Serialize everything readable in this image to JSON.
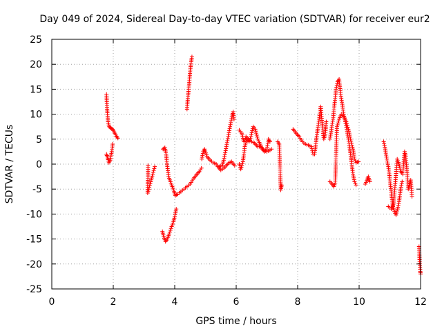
{
  "chart_data": {
    "type": "scatter",
    "title": "Day 049 of 2024, Sidereal Day-to-day VTEC variation (SDTVAR) for receiver eur2",
    "xlabel": "GPS time / hours",
    "ylabel": "SDTVAR / TECUs",
    "xlim": [
      0,
      12
    ],
    "ylim": [
      -25,
      25
    ],
    "xticks": [
      "0",
      "2",
      "4",
      "6",
      "8",
      "10",
      "12"
    ],
    "yticks": [
      "25",
      "20",
      "15",
      "10",
      "5",
      "0",
      "-5",
      "-10",
      "-15",
      "-20",
      "-25"
    ],
    "grid": true,
    "marker": "+",
    "series_color": "#ff0000",
    "segments": [
      [
        [
          1.78,
          14
        ],
        [
          1.8,
          11
        ],
        [
          1.83,
          8.5
        ],
        [
          1.87,
          7.5
        ],
        [
          1.92,
          7.2
        ],
        [
          1.98,
          7
        ],
        [
          2.05,
          6.2
        ],
        [
          2.1,
          5.6
        ],
        [
          2.15,
          5.2
        ]
      ],
      [
        [
          1.78,
          2
        ],
        [
          1.82,
          1.2
        ],
        [
          1.86,
          0.3
        ],
        [
          1.9,
          0.8
        ],
        [
          1.95,
          2.5
        ],
        [
          1.98,
          4
        ]
      ],
      [
        [
          3.13,
          -0.3
        ],
        [
          3.13,
          -2.2
        ],
        [
          3.12,
          -4.3
        ],
        [
          3.12,
          -5.8
        ],
        [
          3.35,
          -0.5
        ]
      ],
      [
        [
          3.6,
          -13.5
        ],
        [
          3.64,
          -14.5
        ],
        [
          3.7,
          -15.5
        ],
        [
          3.76,
          -15
        ],
        [
          3.82,
          -14
        ],
        [
          3.9,
          -12.5
        ],
        [
          3.96,
          -11.5
        ],
        [
          4.0,
          -10.5
        ],
        [
          4.05,
          -9
        ]
      ],
      [
        [
          3.62,
          3
        ],
        [
          3.68,
          3.3
        ],
        [
          3.72,
          2
        ],
        [
          3.76,
          -0.5
        ],
        [
          3.8,
          -2.5
        ],
        [
          3.86,
          -3.5
        ],
        [
          3.92,
          -4.5
        ],
        [
          3.98,
          -5.5
        ],
        [
          4.02,
          -6.3
        ],
        [
          4.1,
          -6
        ],
        [
          4.2,
          -5.5
        ],
        [
          4.3,
          -5
        ],
        [
          4.4,
          -4.5
        ],
        [
          4.5,
          -4
        ],
        [
          4.6,
          -3
        ],
        [
          4.7,
          -2.2
        ],
        [
          4.8,
          -1.5
        ],
        [
          4.87,
          -0.8
        ]
      ],
      [
        [
          4.4,
          11
        ],
        [
          4.43,
          13.5
        ],
        [
          4.47,
          16
        ],
        [
          4.5,
          18.5
        ],
        [
          4.53,
          20.2
        ],
        [
          4.56,
          21.5
        ]
      ],
      [
        [
          4.88,
          1
        ],
        [
          4.93,
          2.5
        ],
        [
          4.97,
          3
        ],
        [
          5.05,
          1.5
        ],
        [
          5.15,
          0.8
        ],
        [
          5.25,
          0.3
        ],
        [
          5.35,
          0
        ],
        [
          5.45,
          -0.5
        ],
        [
          5.55,
          -0.3
        ],
        [
          5.62,
          1.5
        ],
        [
          5.68,
          3.5
        ],
        [
          5.74,
          5.5
        ],
        [
          5.8,
          7.5
        ],
        [
          5.86,
          9.5
        ],
        [
          5.9,
          10.5
        ],
        [
          5.93,
          9
        ]
      ],
      [
        [
          5.4,
          -0.5
        ],
        [
          5.5,
          -1.2
        ],
        [
          5.6,
          -0.8
        ],
        [
          5.75,
          0.2
        ],
        [
          5.85,
          0.5
        ],
        [
          5.95,
          -0.3
        ]
      ],
      [
        [
          6.1,
          0
        ],
        [
          6.15,
          -1
        ],
        [
          6.22,
          0.5
        ],
        [
          6.28,
          3.5
        ],
        [
          6.35,
          5
        ],
        [
          6.42,
          4.5
        ],
        [
          6.48,
          5.5
        ],
        [
          6.55,
          7.5
        ],
        [
          6.62,
          7
        ],
        [
          6.7,
          5
        ],
        [
          6.78,
          4
        ],
        [
          6.85,
          3
        ],
        [
          6.92,
          2.5
        ],
        [
          7.0,
          3
        ],
        [
          7.05,
          5
        ],
        [
          7.1,
          4.5
        ]
      ],
      [
        [
          6.1,
          6.8
        ],
        [
          6.18,
          6.2
        ],
        [
          6.25,
          4.5
        ],
        [
          6.32,
          5.5
        ],
        [
          6.4,
          5
        ],
        [
          6.5,
          4.5
        ],
        [
          6.6,
          4.2
        ],
        [
          6.7,
          3.5
        ],
        [
          6.8,
          3.5
        ],
        [
          6.9,
          2.8
        ],
        [
          7.0,
          2.5
        ],
        [
          7.1,
          2.8
        ],
        [
          7.15,
          3
        ]
      ],
      [
        [
          7.35,
          4.5
        ],
        [
          7.4,
          4
        ],
        [
          7.45,
          -5.2
        ],
        [
          7.48,
          -4.2
        ]
      ],
      [
        [
          7.85,
          7
        ],
        [
          7.95,
          6.2
        ],
        [
          8.05,
          5.5
        ],
        [
          8.15,
          4.5
        ],
        [
          8.25,
          4
        ],
        [
          8.35,
          3.8
        ],
        [
          8.45,
          3.5
        ],
        [
          8.5,
          2
        ],
        [
          8.55,
          2
        ],
        [
          8.6,
          4.5
        ],
        [
          8.65,
          7
        ],
        [
          8.7,
          9
        ],
        [
          8.75,
          11.5
        ],
        [
          8.8,
          8
        ],
        [
          8.85,
          5
        ],
        [
          8.9,
          6
        ],
        [
          8.93,
          8.5
        ]
      ],
      [
        [
          9.05,
          5
        ],
        [
          9.1,
          7
        ],
        [
          9.15,
          9
        ],
        [
          9.2,
          12
        ],
        [
          9.25,
          15
        ],
        [
          9.3,
          16.5
        ],
        [
          9.35,
          17
        ],
        [
          9.4,
          14
        ],
        [
          9.45,
          12
        ],
        [
          9.5,
          10
        ],
        [
          9.55,
          8.5
        ],
        [
          9.6,
          7
        ],
        [
          9.65,
          5
        ],
        [
          9.7,
          3
        ],
        [
          9.75,
          0.5
        ],
        [
          9.8,
          -2
        ],
        [
          9.85,
          -3.5
        ],
        [
          9.9,
          -4.2
        ]
      ],
      [
        [
          9.05,
          -3.5
        ],
        [
          9.12,
          -4
        ],
        [
          9.18,
          -4.5
        ],
        [
          9.22,
          -3.8
        ],
        [
          9.28,
          7.5
        ],
        [
          9.35,
          9
        ],
        [
          9.42,
          10
        ],
        [
          9.5,
          9.5
        ],
        [
          9.58,
          8.5
        ],
        [
          9.65,
          7
        ],
        [
          9.72,
          5
        ],
        [
          9.8,
          3
        ],
        [
          9.85,
          1
        ],
        [
          9.9,
          0.3
        ],
        [
          9.98,
          0.5
        ]
      ],
      [
        [
          10.2,
          -4
        ],
        [
          10.25,
          -3.3
        ],
        [
          10.3,
          -2.5
        ],
        [
          10.35,
          -3.5
        ]
      ],
      [
        [
          10.8,
          4.5
        ],
        [
          10.85,
          3
        ],
        [
          10.9,
          1
        ],
        [
          10.95,
          -0.5
        ],
        [
          11.0,
          -3
        ],
        [
          11.05,
          -6
        ],
        [
          11.1,
          -8.5
        ],
        [
          11.15,
          -9.5
        ],
        [
          11.2,
          -10.2
        ],
        [
          11.25,
          -9
        ],
        [
          11.3,
          -7.5
        ],
        [
          11.35,
          -5
        ],
        [
          11.4,
          -3.5
        ]
      ],
      [
        [
          10.95,
          -8.5
        ],
        [
          11.05,
          -9
        ],
        [
          11.12,
          -8
        ],
        [
          11.18,
          -3.5
        ],
        [
          11.24,
          1
        ],
        [
          11.3,
          0
        ],
        [
          11.35,
          -1.5
        ],
        [
          11.42,
          -2
        ],
        [
          11.48,
          2.5
        ],
        [
          11.52,
          1.5
        ],
        [
          11.6,
          -5
        ],
        [
          11.68,
          -3.2
        ],
        [
          11.72,
          -6.5
        ]
      ],
      [
        [
          11.95,
          -16.5
        ],
        [
          11.97,
          -19.5
        ],
        [
          11.99,
          -21.5
        ],
        [
          12.0,
          -22
        ]
      ]
    ]
  }
}
